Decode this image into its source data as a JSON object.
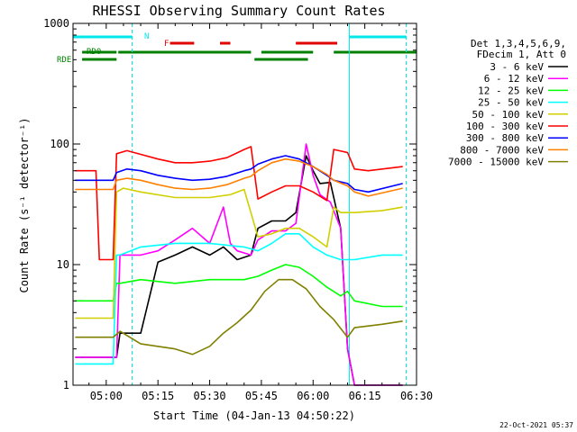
{
  "chart_data": {
    "type": "line",
    "title": "RHESSI Observing Summary Count Rates",
    "xlabel": "Start Time (04-Jan-13 04:50:22)",
    "ylabel": "Count Rate (s⁻¹ detector⁻¹)",
    "x_tick_labels": [
      "05:00",
      "05:15",
      "05:30",
      "05:45",
      "06:00",
      "06:15",
      "06:30"
    ],
    "x_tick_minutes": [
      0,
      15,
      30,
      45,
      60,
      75,
      90
    ],
    "xlim_minutes_after_0500": [
      -9.63,
      90
    ],
    "y_scale": "log",
    "ylim": [
      1,
      1000
    ],
    "y_tick_labels": [
      "1",
      "10",
      "100",
      "1000"
    ],
    "y_tick_values": [
      1,
      10,
      100,
      1000
    ],
    "grid": false,
    "legend_position": "right",
    "legend_header": [
      "Det 1,3,4,5,6,9,",
      "FDecim 1, Att 0"
    ],
    "footer_date": "22-Oct-2021 05:37",
    "night_markers_minutes": [
      -9.63,
      7.5,
      70.5,
      87
    ],
    "dashed_night_markers_minutes": [
      7.5,
      87
    ],
    "flag_bars": [
      {
        "label": "N",
        "color": "#00e8e8",
        "segments": [
          [
            -9.63,
            7.5
          ],
          [
            70.5,
            87
          ]
        ]
      },
      {
        "label": "F",
        "color": "#e00000",
        "segments": [
          [
            18.5,
            25.5
          ],
          [
            33,
            36
          ],
          [
            55,
            67
          ]
        ]
      },
      {
        "label": "RD0",
        "color": "#008000",
        "segments": [
          [
            -7,
            3
          ],
          [
            3.5,
            42
          ],
          [
            45,
            60
          ],
          [
            66,
            90
          ]
        ]
      },
      {
        "label": "RDE",
        "color": "#008000",
        "segments": [
          [
            -7,
            3
          ],
          [
            43,
            58.5
          ]
        ]
      }
    ],
    "series": [
      {
        "name": "3 - 6 keV",
        "color": "#000000",
        "x": [
          -9,
          -4,
          3,
          4,
          10,
          15,
          20,
          25,
          30,
          34,
          38,
          42,
          44,
          48,
          52,
          55,
          58,
          60,
          62,
          65,
          68,
          70,
          72,
          74,
          78,
          82,
          86
        ],
        "y": [
          1.7,
          1.7,
          1.7,
          2.7,
          2.7,
          10.5,
          12,
          14,
          12,
          14,
          11,
          12,
          20,
          23,
          23,
          27,
          80,
          60,
          47,
          48,
          20,
          2,
          1,
          1,
          1,
          1,
          1
        ]
      },
      {
        "name": "6 - 12 keV",
        "color": "#ff00ff",
        "x": [
          -9,
          -4,
          3,
          4,
          10,
          15,
          20,
          25,
          30,
          34,
          36,
          38,
          42,
          44,
          48,
          52,
          55,
          58,
          60,
          62,
          65,
          68,
          70,
          72,
          76,
          86
        ],
        "y": [
          1.7,
          1.7,
          1.7,
          12,
          12,
          13,
          16,
          20,
          15,
          30,
          15,
          13,
          12,
          16,
          19,
          19,
          22,
          100,
          55,
          38,
          33,
          20,
          2,
          1,
          1,
          1
        ]
      },
      {
        "name": "12 - 25 keV",
        "color": "#00ff00",
        "x": [
          -9,
          2,
          3,
          4,
          10,
          20,
          30,
          40,
          44,
          48,
          52,
          56,
          60,
          64,
          68,
          70,
          72,
          80,
          86
        ],
        "y": [
          5,
          5,
          7,
          7,
          7.5,
          7,
          7.5,
          7.5,
          8,
          9,
          10,
          9.5,
          8,
          6.5,
          5.5,
          6,
          5,
          4.5,
          4.5
        ]
      },
      {
        "name": "25 - 50 keV",
        "color": "#00ffff",
        "x": [
          -9,
          2,
          3,
          4,
          10,
          20,
          30,
          40,
          44,
          48,
          52,
          56,
          60,
          64,
          68,
          70,
          72,
          80,
          86
        ],
        "y": [
          1.5,
          1.5,
          12,
          12,
          14,
          15,
          15,
          14,
          13,
          15,
          18,
          18,
          14,
          12,
          11,
          11,
          11,
          12,
          12
        ]
      },
      {
        "name": "50 - 100 keV",
        "color": "#d0d000",
        "x": [
          -9,
          2,
          3,
          5,
          10,
          20,
          30,
          36,
          40,
          44,
          48,
          52,
          56,
          60,
          64,
          66,
          68,
          72,
          80,
          86
        ],
        "y": [
          3.6,
          3.6,
          40,
          43,
          40,
          36,
          36,
          38,
          42,
          17,
          18,
          20,
          20,
          17,
          14,
          30,
          27,
          27,
          28,
          30
        ]
      },
      {
        "name": "100 - 300 keV",
        "color": "#ff0000",
        "x": [
          -9,
          -3,
          -2,
          2,
          3,
          6,
          10,
          15,
          20,
          25,
          30,
          35,
          40,
          42,
          44,
          48,
          52,
          56,
          60,
          64,
          66,
          70,
          72,
          76,
          86
        ],
        "y": [
          60,
          60,
          11,
          11,
          83,
          88,
          82,
          75,
          70,
          70,
          72,
          77,
          90,
          95,
          35,
          40,
          45,
          45,
          40,
          34,
          90,
          85,
          62,
          60,
          65
        ]
      },
      {
        "name": "300 - 800 keV",
        "color": "#0000ff",
        "x": [
          -9,
          2,
          3,
          6,
          10,
          15,
          20,
          25,
          30,
          35,
          40,
          42,
          44,
          48,
          52,
          56,
          60,
          64,
          66,
          70,
          72,
          76,
          86
        ],
        "y": [
          50,
          50,
          58,
          62,
          60,
          55,
          52,
          50,
          51,
          54,
          60,
          62,
          68,
          75,
          80,
          75,
          65,
          55,
          50,
          47,
          42,
          40,
          47
        ]
      },
      {
        "name": "800 - 7000 keV",
        "color": "#ff8000",
        "x": [
          -9,
          2,
          3,
          6,
          10,
          15,
          20,
          25,
          30,
          35,
          40,
          42,
          44,
          48,
          52,
          56,
          60,
          64,
          66,
          70,
          72,
          76,
          86
        ],
        "y": [
          42,
          42,
          50,
          52,
          50,
          46,
          43,
          42,
          43,
          46,
          52,
          54,
          60,
          70,
          75,
          72,
          65,
          56,
          50,
          45,
          40,
          37,
          43
        ]
      },
      {
        "name": "7000 - 15000 keV",
        "color": "#808000",
        "x": [
          -9,
          2,
          4,
          10,
          20,
          25,
          30,
          34,
          38,
          42,
          46,
          50,
          54,
          58,
          62,
          66,
          70,
          72,
          80,
          86
        ],
        "y": [
          2.5,
          2.5,
          2.8,
          2.2,
          2,
          1.8,
          2.1,
          2.7,
          3.3,
          4.2,
          6,
          7.5,
          7.5,
          6.3,
          4.5,
          3.5,
          2.5,
          3,
          3.2,
          3.4
        ]
      }
    ]
  }
}
